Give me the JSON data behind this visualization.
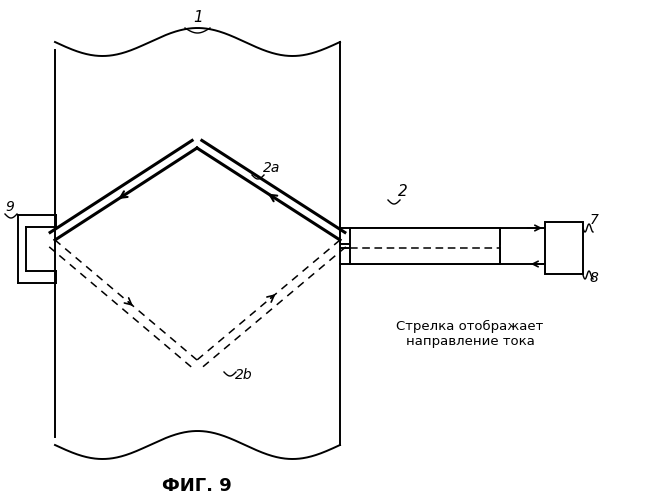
{
  "bg_color": "#ffffff",
  "line_color": "#000000",
  "title": "ФИГ. 9",
  "annotation_text": "Стрелка отображает\nнаправление тока",
  "label_1": "1",
  "label_2": "2",
  "label_2a": "2a",
  "label_2b": "2b",
  "label_7": "7",
  "label_8": "8",
  "label_9": "9"
}
